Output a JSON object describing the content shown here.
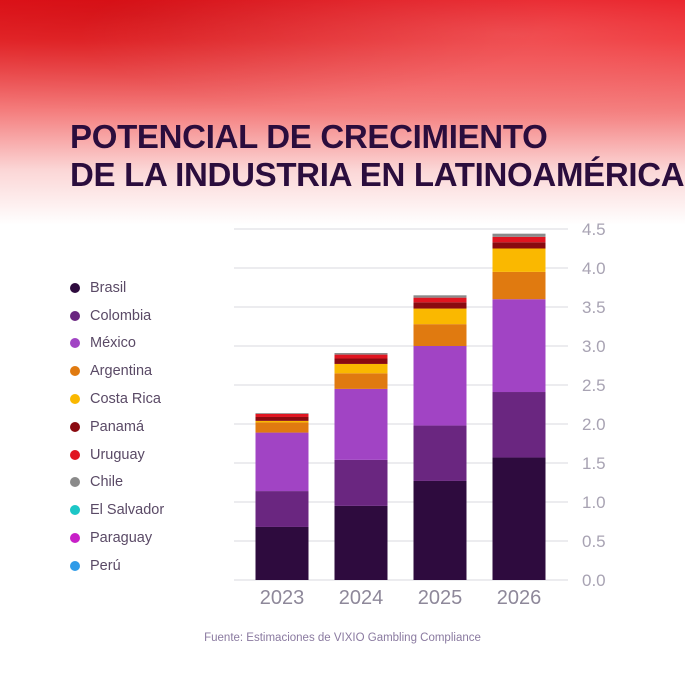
{
  "header": {
    "title_line1": "POTENCIAL DE CRECIMIENTO",
    "title_line2": "DE LA INDUSTRIA EN LATINOAMÉRICA."
  },
  "footer": {
    "source": "Fuente: Estimaciones de VIXIO Gambling Compliance"
  },
  "chart_data": {
    "type": "bar",
    "stacked": true,
    "categories": [
      "2023",
      "2024",
      "2025",
      "2026"
    ],
    "series": [
      {
        "name": "Brasil",
        "color": "#2e0b3e",
        "values": [
          0.68,
          0.95,
          1.27,
          1.57
        ]
      },
      {
        "name": "Colombia",
        "color": "#6a2680",
        "values": [
          0.46,
          0.59,
          0.71,
          0.84
        ]
      },
      {
        "name": "México",
        "color": "#a144c4",
        "values": [
          0.75,
          0.91,
          1.02,
          1.19
        ]
      },
      {
        "name": "Argentina",
        "color": "#e07a10",
        "values": [
          0.13,
          0.2,
          0.28,
          0.35
        ]
      },
      {
        "name": "Costa Rica",
        "color": "#fab800",
        "values": [
          0.02,
          0.12,
          0.2,
          0.3
        ]
      },
      {
        "name": "Panamá",
        "color": "#8a0a10",
        "values": [
          0.05,
          0.07,
          0.08,
          0.08
        ]
      },
      {
        "name": "Uruguay",
        "color": "#e01520",
        "values": [
          0.04,
          0.05,
          0.06,
          0.07
        ]
      },
      {
        "name": "Chile",
        "color": "#8a8a8a",
        "values": [
          0.01,
          0.02,
          0.03,
          0.04
        ]
      },
      {
        "name": "El Salvador",
        "color": "#1cc6c6",
        "values": [
          0,
          0,
          0,
          0
        ]
      },
      {
        "name": "Paraguay",
        "color": "#c81fc8",
        "values": [
          0,
          0,
          0,
          0
        ]
      },
      {
        "name": "Perú",
        "color": "#2f9be8",
        "values": [
          0,
          0,
          0,
          0
        ]
      }
    ],
    "yticks": [
      "0.0",
      "0.5",
      "1.0",
      "1.5",
      "2.0",
      "2.5",
      "3.0",
      "3.5",
      "4.0",
      "4.5"
    ],
    "ylim": [
      0,
      4.5
    ],
    "grid": true,
    "y_axis_position": "right",
    "legend_position": "left"
  }
}
